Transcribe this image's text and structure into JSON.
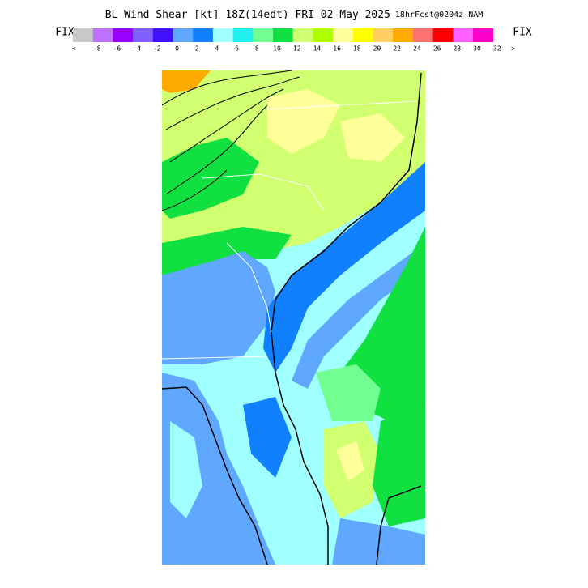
{
  "header": {
    "title": "BL Wind Shear [kt] 18Z(14edt) FRI 02 May 2025",
    "subtitle": "18hrFcst@0204z NAM"
  },
  "legend": {
    "left_label": "FIX",
    "right_label": "FIX",
    "colors": [
      "#c8c8c8",
      "#c070ff",
      "#9a00ff",
      "#8060ff",
      "#4010ff",
      "#60a8ff",
      "#1080ff",
      "#a0ffff",
      "#20f0f0",
      "#70ff90",
      "#10e040",
      "#d0ff70",
      "#b0ff00",
      "#ffff99",
      "#ffff00",
      "#ffd060",
      "#ffaa00",
      "#ff7070",
      "#ff0000",
      "#ff60ff",
      "#ff00cc"
    ],
    "labels": [
      "<",
      "-8",
      "-6",
      "-4",
      "-2",
      "0",
      "2",
      "4",
      "6",
      "8",
      "10",
      "12",
      "14",
      "16",
      "18",
      "20",
      "22",
      "24",
      "26",
      "28",
      "30",
      "32",
      ">"
    ]
  }
}
